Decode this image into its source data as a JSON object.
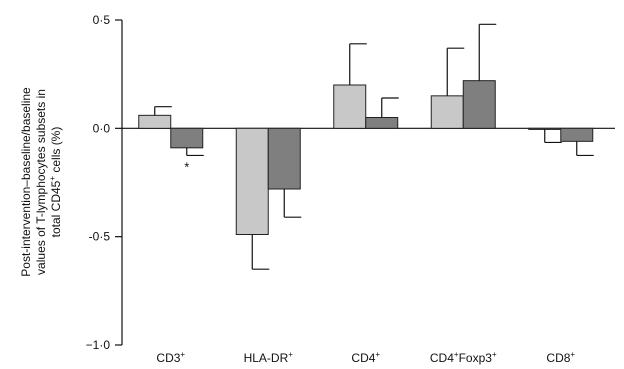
{
  "chart_data": {
    "type": "bar",
    "categories": [
      {
        "base": "CD3",
        "sup": "+"
      },
      {
        "base": "HLA-DR",
        "sup": "+"
      },
      {
        "base": "CD4",
        "sup": "+"
      },
      {
        "base": "CD4",
        "sup": "+",
        "base2": "Foxp3",
        "sup2": "+"
      },
      {
        "base": "CD8",
        "sup": "+"
      }
    ],
    "series": [
      {
        "color": "#c8c8c8",
        "values": [
          0.06,
          -0.49,
          0.2,
          0.15,
          -0.005
        ],
        "errors": [
          0.04,
          0.16,
          0.19,
          0.22,
          0.06
        ]
      },
      {
        "color": "#7f7f7f",
        "values": [
          -0.09,
          -0.28,
          0.05,
          0.22,
          -0.06
        ],
        "errors": [
          0.035,
          0.13,
          0.09,
          0.26,
          0.065
        ]
      }
    ],
    "ylabel_lines": [
      "Post-intervention–baseline/baseline",
      "values of T-lymphocytes subsets in",
      {
        "pre": "total CD45",
        "sup": "+",
        "post": " cells (%)"
      }
    ],
    "ylim": [
      -1.0,
      0.5
    ],
    "yticks": [
      {
        "value": 0.5,
        "label": "0·5"
      },
      {
        "value": 0.0,
        "label": "0·0"
      },
      {
        "value": -0.5,
        "label": "-0·5"
      },
      {
        "value": -1.0,
        "label": "−1·0"
      }
    ],
    "annotations": [
      {
        "text": "*",
        "category": 0,
        "series": 1
      }
    ],
    "grid": false,
    "legend": "none"
  }
}
